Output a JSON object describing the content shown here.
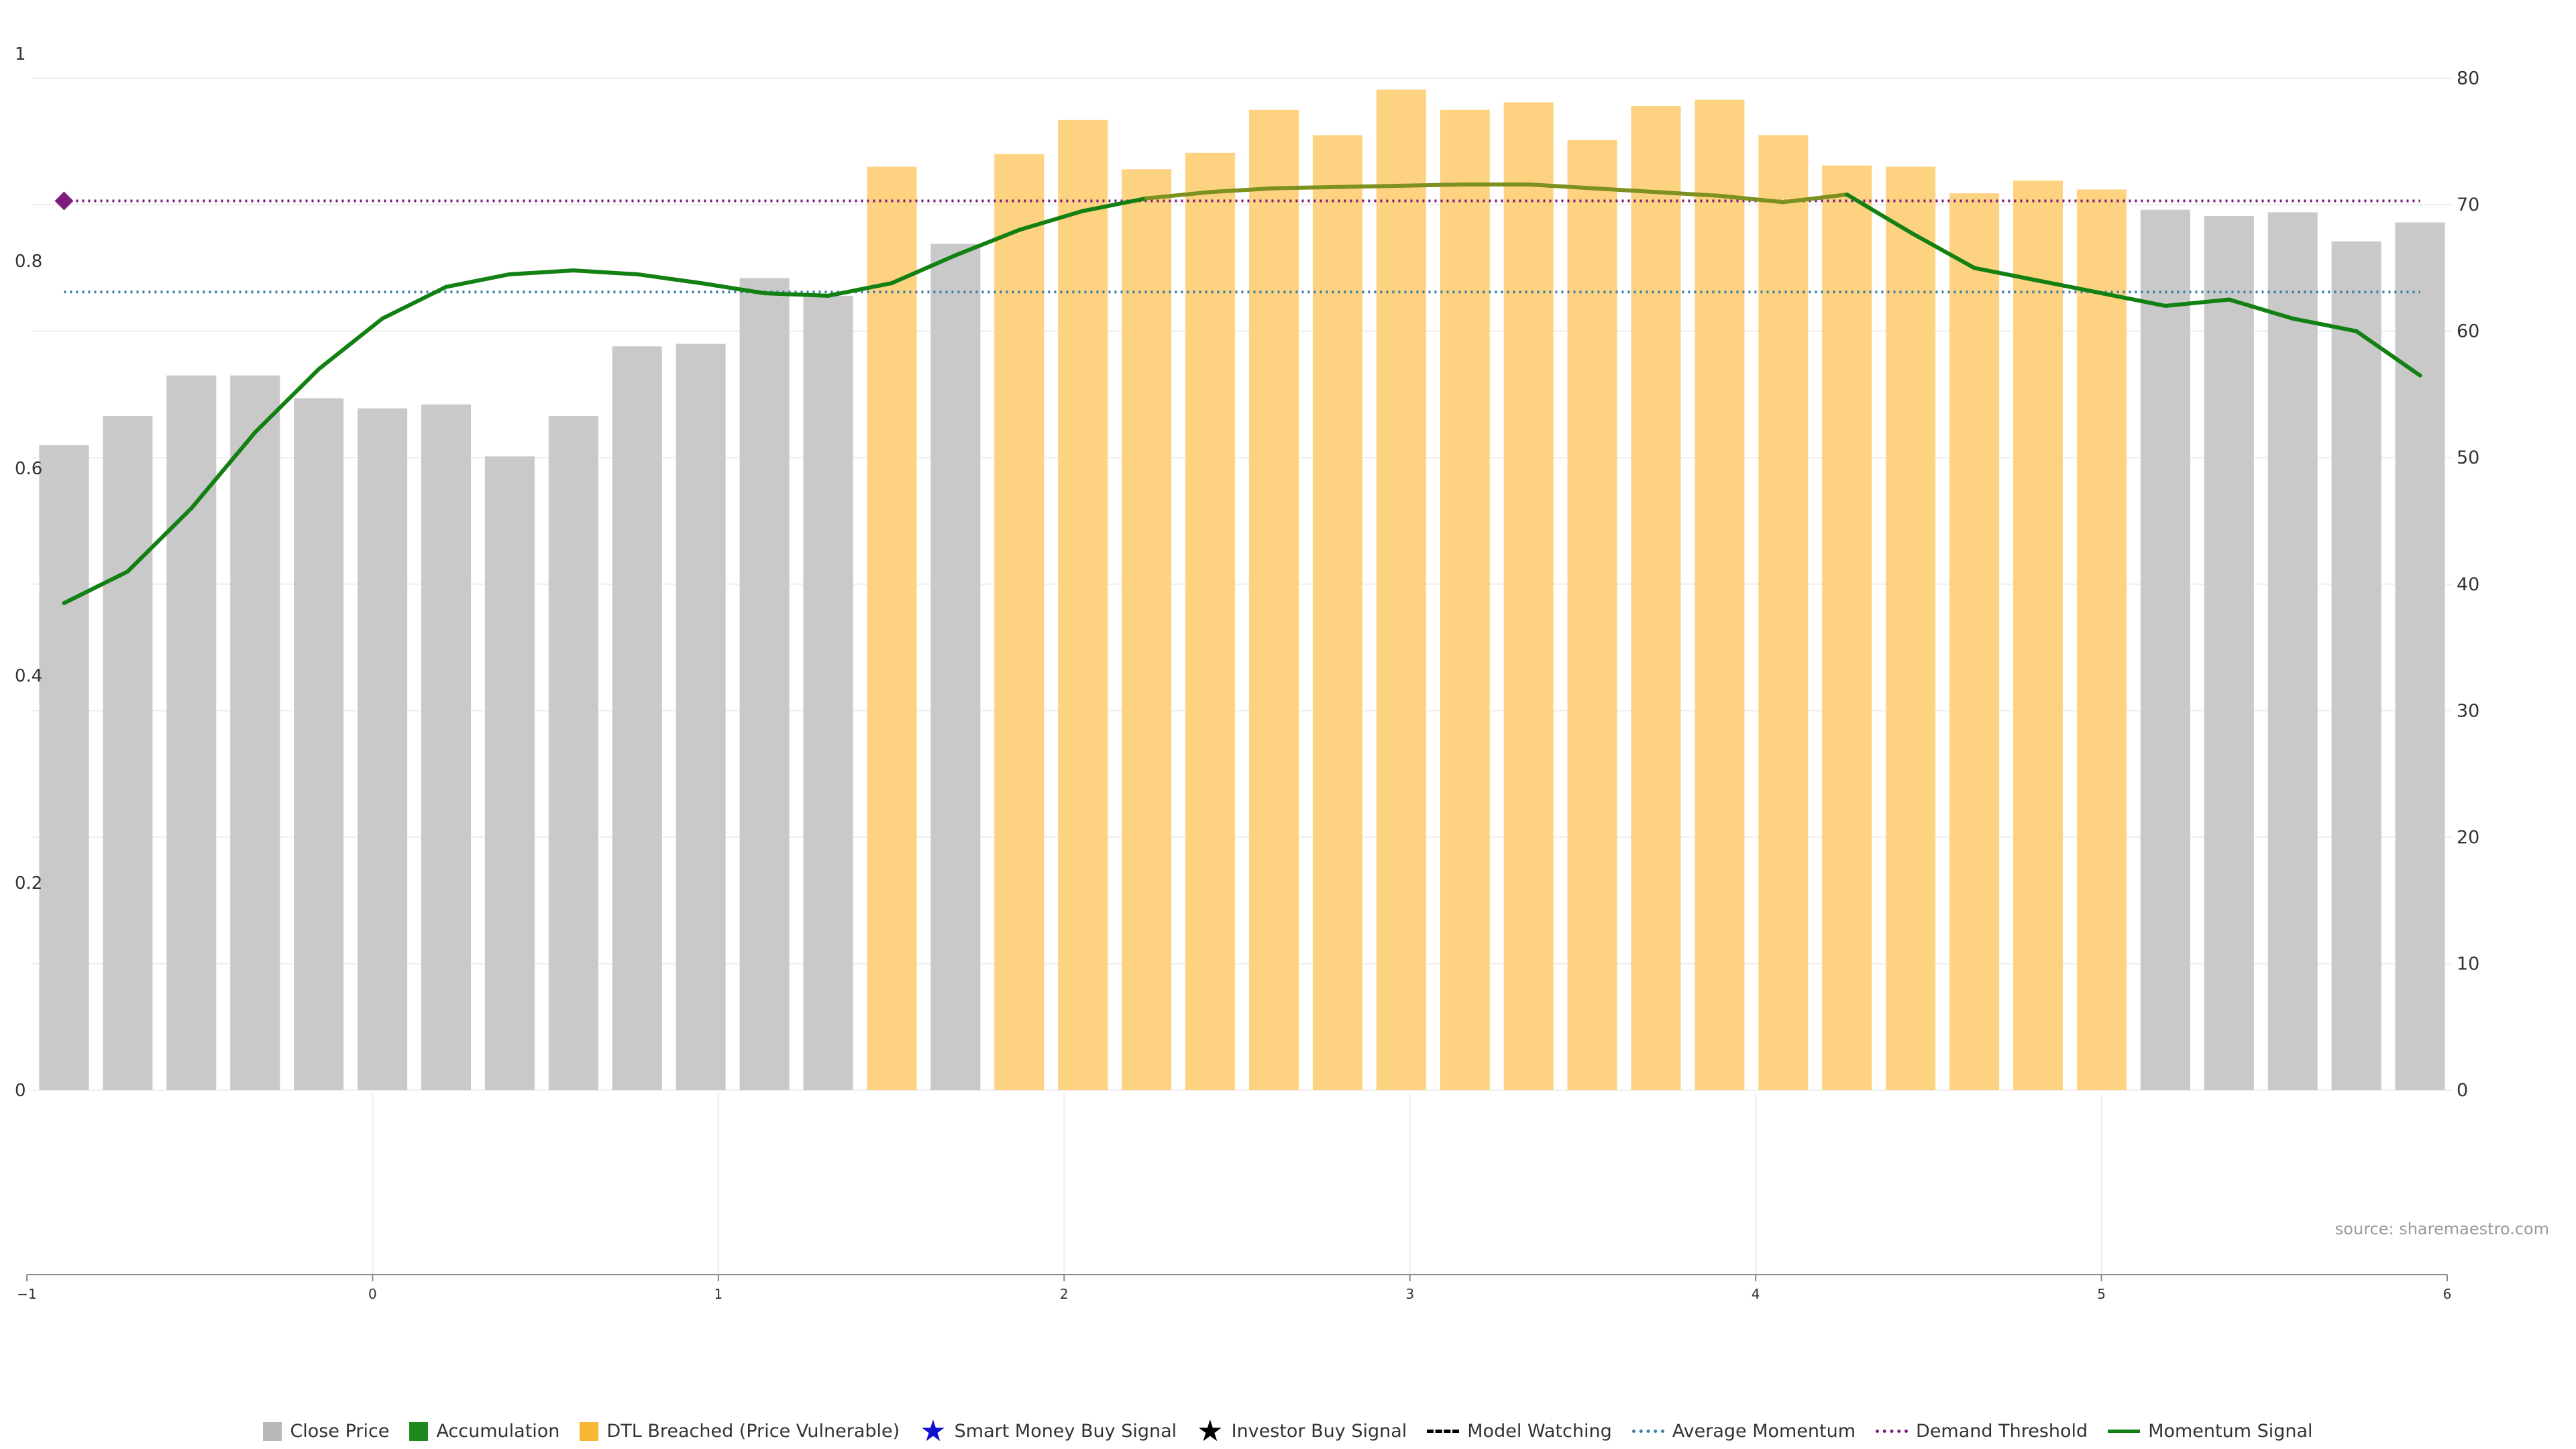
{
  "chart_data": [
    {
      "type": "bar",
      "left_axis": {
        "ticks": [
          "0",
          "0.2",
          "0.4",
          "0.6",
          "0.8",
          "1"
        ],
        "ylim": [
          0,
          1
        ]
      },
      "right_axis": {
        "ticks": [
          "0",
          "10",
          "20",
          "30",
          "40",
          "50",
          "60",
          "70",
          "80"
        ],
        "ylim": [
          0,
          83
        ]
      },
      "grid": true,
      "series": [
        {
          "name": "Close Price",
          "axis": "right",
          "values": [
            51,
            53.3,
            56.5,
            56.5,
            54.7,
            53.9,
            54.2,
            50.1,
            53.3,
            58.8,
            59,
            64.2,
            62.8,
            73,
            66.9,
            74,
            76.7,
            72.8,
            74.1,
            77.5,
            75.5,
            79.1,
            77.5,
            78.1,
            75.1,
            77.8,
            78.3,
            75.5,
            73.1,
            73,
            70.9,
            71.9,
            71.2,
            69.6,
            69.1,
            69.4,
            67.1,
            68.6
          ],
          "states": [
            "normal",
            "normal",
            "normal",
            "normal",
            "normal",
            "normal",
            "normal",
            "normal",
            "normal",
            "normal",
            "normal",
            "normal",
            "normal",
            "dtl",
            "normal",
            "dtl",
            "dtl",
            "dtl",
            "dtl",
            "dtl",
            "dtl",
            "dtl",
            "dtl",
            "dtl",
            "dtl",
            "dtl",
            "dtl",
            "dtl",
            "dtl",
            "dtl",
            "dtl",
            "dtl",
            "dtl",
            "normal",
            "normal",
            "normal",
            "normal",
            "normal"
          ]
        },
        {
          "name": "Momentum Signal",
          "axis": "right",
          "type": "line",
          "values": [
            38.5,
            41,
            46,
            52,
            57,
            61,
            63.5,
            64.5,
            64.8,
            64.5,
            63.8,
            63,
            62.8,
            63.8,
            66,
            68,
            69.5,
            70.5,
            71,
            71.3,
            71.4,
            71.5,
            71.6,
            71.6,
            71.3,
            71,
            70.7,
            70.2,
            70.8,
            67.8,
            65,
            64,
            63,
            62,
            62.5,
            61,
            60,
            56.5
          ]
        },
        {
          "name": "Average Momentum",
          "axis": "right",
          "type": "line",
          "value": 63.1
        },
        {
          "name": "Demand Threshold",
          "axis": "right",
          "type": "line",
          "value": 70.3
        }
      ],
      "colors": {
        "close_price": "#c9c9c9",
        "dtl_breached": "#fdd281",
        "momentum_green": "#138013",
        "momentum_olive": "#7d9120",
        "average_momentum": "#3a7fa5",
        "demand_threshold": "#7e1b7e",
        "grid": "#eeeeee",
        "axis": "#888888"
      }
    },
    {
      "type": "line",
      "x_ticks": [
        "−1",
        "0",
        "1",
        "2",
        "3",
        "4",
        "5",
        "6"
      ],
      "xlim": [
        -1,
        6
      ],
      "grid": true,
      "series": []
    }
  ],
  "source_text": "source: sharemaestro.com",
  "legend": [
    {
      "label": "Close Price",
      "kind": "box",
      "color": "#b8b8b8",
      "icon": "square-icon"
    },
    {
      "label": "Accumulation",
      "kind": "box",
      "color": "#1e8a1e",
      "icon": "square-icon"
    },
    {
      "label": "DTL Breached (Price Vulnerable)",
      "kind": "box",
      "color": "#f7b733",
      "icon": "square-icon"
    },
    {
      "label": "Smart Money Buy Signal",
      "kind": "star",
      "color": "#1010d0",
      "icon": "star-icon"
    },
    {
      "label": "Investor Buy Signal",
      "kind": "star",
      "color": "#000000",
      "icon": "star-icon"
    },
    {
      "label": "Model Watching",
      "kind": "dashed",
      "color": "#000000",
      "icon": "dashed-line-icon"
    },
    {
      "label": "Average Momentum",
      "kind": "dotted",
      "color": "#3a7fa5",
      "icon": "dotted-line-icon"
    },
    {
      "label": "Demand Threshold",
      "kind": "dotted",
      "color": "#7e1b7e",
      "icon": "dotted-line-icon"
    },
    {
      "label": "Momentum Signal",
      "kind": "solid",
      "color": "#138013",
      "icon": "solid-line-icon"
    }
  ]
}
